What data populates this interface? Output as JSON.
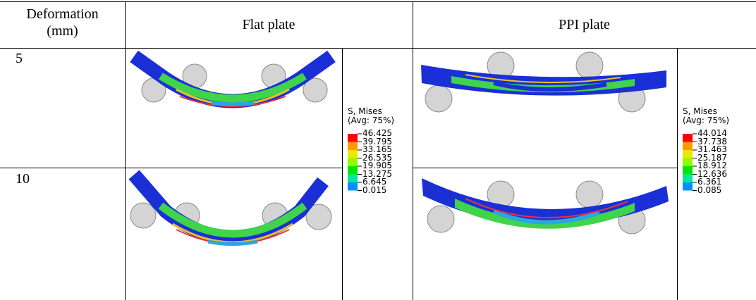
{
  "header": {
    "deformation": "Deformation (mm)",
    "flat": "Flat plate",
    "ppi": "PPI plate"
  },
  "rows": [
    "5",
    "10"
  ],
  "legends": [
    {
      "title": "S, Mises",
      "subtitle": "(Avg: 75%)",
      "values": [
        "46.425",
        "39.795",
        "33.165",
        "26.535",
        "19.905",
        "13.275",
        "6.645",
        "0.015"
      ]
    },
    {
      "title": "S, Mises",
      "subtitle": "(Avg: 75%)",
      "values": [
        "44.014",
        "37.738",
        "31.463",
        "25.187",
        "18.912",
        "12.636",
        "6.361",
        "0.085"
      ]
    }
  ]
}
